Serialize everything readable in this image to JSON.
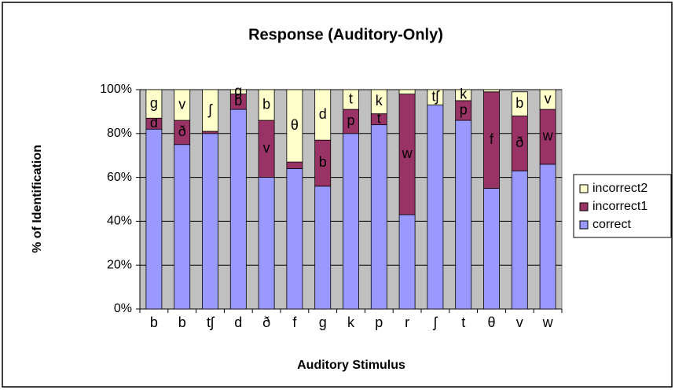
{
  "chart_data": {
    "type": "stacked_bar",
    "title": "Response (Auditory-Only)",
    "x_label": "Auditory Stimulus",
    "y_label": "% of Identification",
    "categories": [
      "b",
      "b",
      "tʃ",
      "d",
      "ð",
      "f",
      "g",
      "k",
      "p",
      "r",
      "ʃ",
      "t",
      "θ",
      "v",
      "w"
    ],
    "series": [
      {
        "name": "correct",
        "color": "#9999ff",
        "values": [
          82,
          75,
          80,
          91,
          60,
          64,
          56,
          80,
          84,
          43,
          93,
          86,
          55,
          63,
          66
        ],
        "labels": [
          null,
          null,
          null,
          null,
          null,
          null,
          null,
          null,
          null,
          null,
          null,
          null,
          null,
          null,
          null
        ]
      },
      {
        "name": "incorrect1",
        "color": "#993366",
        "values": [
          5,
          11,
          1,
          7,
          26,
          3,
          21,
          11,
          5,
          55,
          0,
          9,
          44,
          25,
          25
        ],
        "labels": [
          "d",
          "ð",
          null,
          "b",
          "v",
          null,
          "b",
          "p",
          "t",
          "w",
          null,
          "p",
          "f",
          "ð",
          "w"
        ]
      },
      {
        "name": "incorrect2",
        "color": "#ffffcc",
        "values": [
          13,
          14,
          19,
          2,
          14,
          33,
          23,
          9,
          11,
          2,
          7,
          5,
          1,
          11,
          9
        ],
        "labels": [
          "g",
          "v",
          "ʃ",
          "g",
          "b",
          "θ",
          "d",
          "t",
          "k",
          null,
          "tʃ",
          "k",
          null,
          "b",
          "v"
        ]
      }
    ],
    "ylim": [
      0,
      100
    ],
    "yticks": [
      {
        "value": 0,
        "label": "0%"
      },
      {
        "value": 20,
        "label": "20%"
      },
      {
        "value": 40,
        "label": "40%"
      },
      {
        "value": 60,
        "label": "60%"
      },
      {
        "value": 80,
        "label": "80%"
      },
      {
        "value": 100,
        "label": "100%"
      }
    ],
    "grid": true,
    "legend": "right"
  }
}
